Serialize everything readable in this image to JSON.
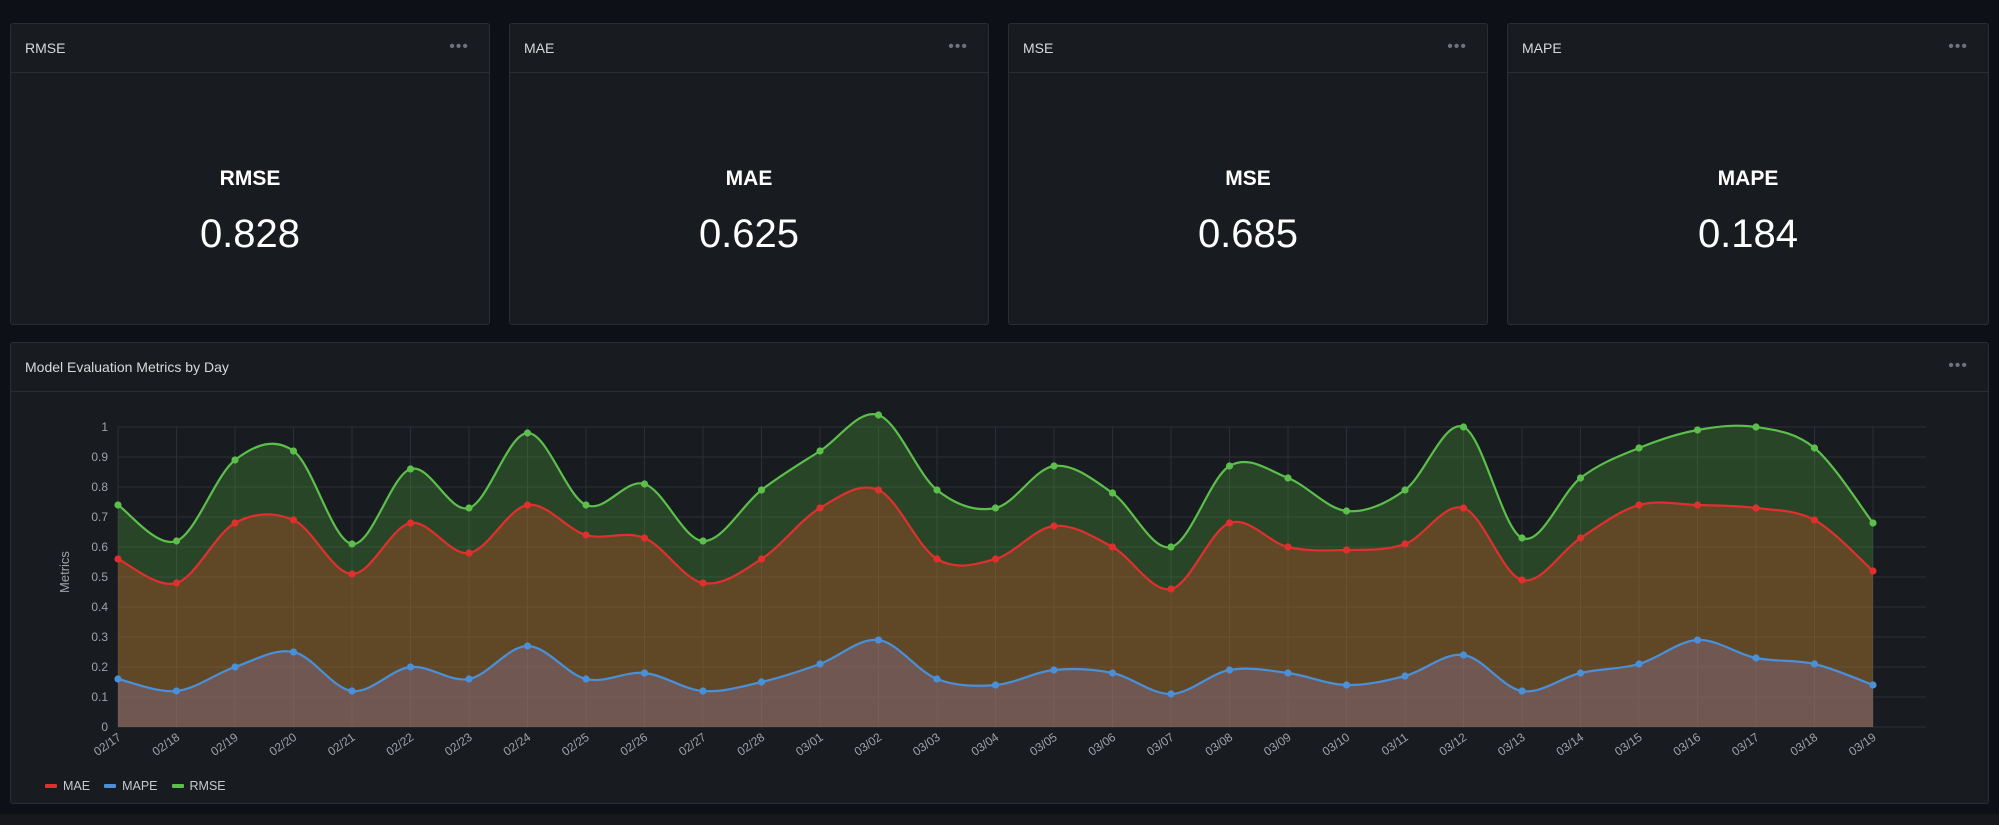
{
  "stats": [
    {
      "title": "RMSE",
      "label": "RMSE",
      "value": "0.828"
    },
    {
      "title": "MAE",
      "label": "MAE",
      "value": "0.625"
    },
    {
      "title": "MSE",
      "label": "MSE",
      "value": "0.685"
    },
    {
      "title": "MAPE",
      "label": "MAPE",
      "value": "0.184"
    }
  ],
  "menu_glyph": "•••",
  "chart_panel": {
    "title": "Model Evaluation Metrics by Day"
  },
  "colors": {
    "MAE": "#e0302e",
    "MAPE": "#4a90d9",
    "RMSE": "#5cbf4b"
  },
  "chart_data": {
    "type": "area",
    "ylabel": "Metrics",
    "xlabel": "",
    "ylim": [
      0,
      1
    ],
    "yticks": [
      "0",
      "0.1",
      "0.2",
      "0.3",
      "0.4",
      "0.5",
      "0.6",
      "0.7",
      "0.8",
      "0.9",
      "1"
    ],
    "grid": true,
    "legend_position": "bottom-left",
    "categories": [
      "02/17",
      "02/18",
      "02/19",
      "02/20",
      "02/21",
      "02/22",
      "02/23",
      "02/24",
      "02/25",
      "02/26",
      "02/27",
      "02/28",
      "03/01",
      "03/02",
      "03/03",
      "03/04",
      "03/05",
      "03/06",
      "03/07",
      "03/08",
      "03/09",
      "03/10",
      "03/11",
      "03/12",
      "03/13",
      "03/14",
      "03/15",
      "03/16",
      "03/17",
      "03/18",
      "03/19"
    ],
    "series": [
      {
        "name": "MAE",
        "values": [
          0.56,
          0.48,
          0.68,
          0.69,
          0.51,
          0.68,
          0.58,
          0.74,
          0.64,
          0.63,
          0.48,
          0.56,
          0.73,
          0.79,
          0.56,
          0.56,
          0.67,
          0.6,
          0.46,
          0.68,
          0.6,
          0.59,
          0.61,
          0.73,
          0.49,
          0.63,
          0.74,
          0.74,
          0.73,
          0.69,
          0.52
        ]
      },
      {
        "name": "MAPE",
        "values": [
          0.16,
          0.12,
          0.2,
          0.25,
          0.12,
          0.2,
          0.16,
          0.27,
          0.16,
          0.18,
          0.12,
          0.15,
          0.21,
          0.29,
          0.16,
          0.14,
          0.19,
          0.18,
          0.11,
          0.19,
          0.18,
          0.14,
          0.17,
          0.24,
          0.12,
          0.18,
          0.21,
          0.29,
          0.23,
          0.21,
          0.14
        ]
      },
      {
        "name": "RMSE",
        "values": [
          0.74,
          0.62,
          0.89,
          0.92,
          0.61,
          0.86,
          0.73,
          0.98,
          0.74,
          0.81,
          0.62,
          0.79,
          0.92,
          1.04,
          0.79,
          0.73,
          0.87,
          0.78,
          0.6,
          0.87,
          0.83,
          0.72,
          0.79,
          1.0,
          0.63,
          0.83,
          0.93,
          0.99,
          1.0,
          0.93,
          0.68
        ]
      }
    ]
  }
}
